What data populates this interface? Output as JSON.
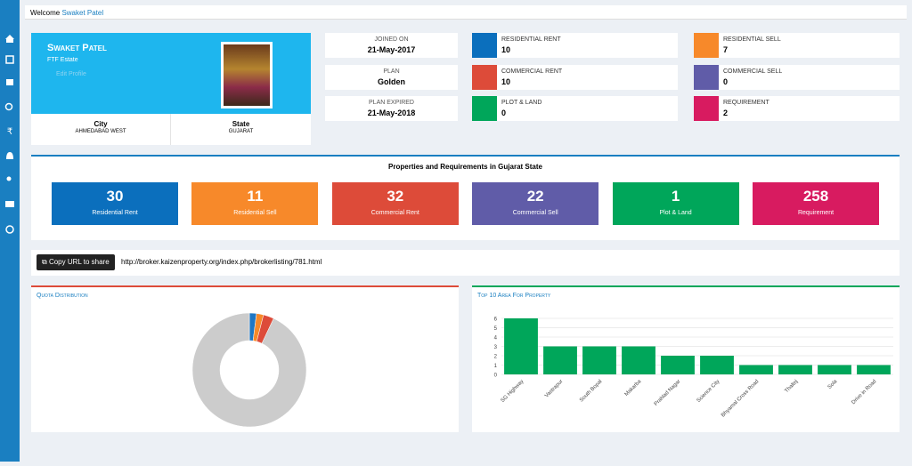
{
  "topbar": {
    "welcome": "Welcome",
    "user": "Swaket Patel"
  },
  "profile": {
    "name": "Swaket Patel",
    "company": "FTF Estate",
    "edit": "Edit Profile",
    "city_label": "City",
    "city": "AHMEDABAD WEST",
    "state_label": "State",
    "state": "GUJARAT"
  },
  "plan": [
    {
      "label": "JOINED ON",
      "value": "21-May-2017"
    },
    {
      "label": "PLAN",
      "value": "Golden"
    },
    {
      "label": "PLAN EXPIRED",
      "value": "21-May-2018"
    }
  ],
  "stats": [
    {
      "label": "RESIDENTIAL RENT",
      "value": 10,
      "color": "#0b6fbd"
    },
    {
      "label": "COMMERCIAL RENT",
      "value": 10,
      "color": "#dd4b39"
    },
    {
      "label": "PLOT & LAND",
      "value": 0,
      "color": "#00a65a"
    },
    {
      "label": "RESIDENTIAL SELL",
      "value": 7,
      "color": "#f7892a"
    },
    {
      "label": "COMMERCIAL SELL",
      "value": 0,
      "color": "#605ca8"
    },
    {
      "label": "REQUIREMENT",
      "value": 2,
      "color": "#d81b60"
    }
  ],
  "summary": {
    "title": "Properties and Requirements in Gujarat State",
    "tiles": [
      {
        "value": 30,
        "label": "Residential Rent",
        "color": "#0b6fbd"
      },
      {
        "value": 11,
        "label": "Residential Sell",
        "color": "#f7892a"
      },
      {
        "value": 32,
        "label": "Commercial Rent",
        "color": "#dd4b39"
      },
      {
        "value": 22,
        "label": "Commercial Sell",
        "color": "#605ca8"
      },
      {
        "value": 1,
        "label": "Plot & Land",
        "color": "#00a65a"
      },
      {
        "value": 258,
        "label": "Requirement",
        "color": "#d81b60"
      }
    ]
  },
  "share": {
    "button": "Copy URL to share",
    "url": "http://broker.kaizenproperty.org/index.php/brokerlisting/781.html"
  },
  "chart_data": [
    {
      "type": "pie",
      "title": "Quota Distribution",
      "values": [
        2,
        2,
        3,
        93
      ],
      "colors": [
        "#1f77c4",
        "#f7892a",
        "#dd4b39",
        "#cccccc"
      ]
    },
    {
      "type": "bar",
      "title": "Top 10 Area For Property",
      "categories": [
        "SG Highway",
        "Vastrapur",
        "South Bopal",
        "Makarba",
        "Prahlad Nagar",
        "Science City",
        "Bhyamal Cross Road",
        "Thaltej",
        "Sola",
        "Drive in Road"
      ],
      "values": [
        6,
        3,
        3,
        3,
        2,
        2,
        1,
        1,
        1,
        1
      ],
      "color": "#00a65a",
      "ylim": [
        0,
        6
      ],
      "yticks": [
        0,
        1,
        2,
        3,
        4,
        5,
        6
      ],
      "grid": true
    }
  ]
}
